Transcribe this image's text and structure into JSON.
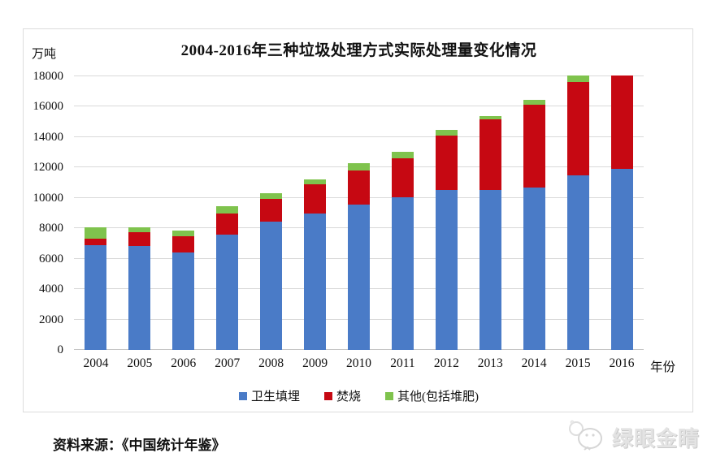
{
  "chart": {
    "title": "2004-2016年三种垃圾处理方式实际处理量变化情况",
    "unit_label": "万吨",
    "xaxis_label": "年份"
  },
  "chart_data": {
    "type": "bar",
    "stacked": true,
    "title": "2004-2016年三种垃圾处理方式实际处理量变化情况",
    "unit": "万吨",
    "xlabel": "年份",
    "ylabel": "万吨",
    "categories": [
      "2004",
      "2005",
      "2006",
      "2007",
      "2008",
      "2009",
      "2010",
      "2011",
      "2012",
      "2013",
      "2014",
      "2015",
      "2016"
    ],
    "series": [
      {
        "name": "卫生填埋",
        "color": "#4A7BC7",
        "values": [
          6900,
          6850,
          6400,
          7600,
          8450,
          8950,
          9550,
          10050,
          10500,
          10500,
          10700,
          11500,
          11900
        ]
      },
      {
        "name": "焚烧",
        "color": "#C60812",
        "values": [
          400,
          900,
          1100,
          1400,
          1500,
          1950,
          2250,
          2550,
          3600,
          4650,
          5450,
          6150,
          6150
        ]
      },
      {
        "name": "其他(包括堆肥)",
        "color": "#7FC34D",
        "values": [
          750,
          300,
          350,
          450,
          350,
          300,
          500,
          450,
          400,
          250,
          300,
          400,
          0
        ]
      }
    ],
    "ylim": [
      0,
      18000
    ],
    "ytick_step": 2000,
    "grid": true,
    "legend_position": "bottom"
  },
  "colors": {
    "landfill": "#4A7BC7",
    "incineration": "#C60812",
    "other": "#7FC34D",
    "gridline": "#D9D9D9",
    "watermark": "#E3E3E3"
  },
  "source": {
    "text": "资料来源：《中国统计年鉴》"
  },
  "watermark": {
    "text": "绿眼金睛"
  }
}
